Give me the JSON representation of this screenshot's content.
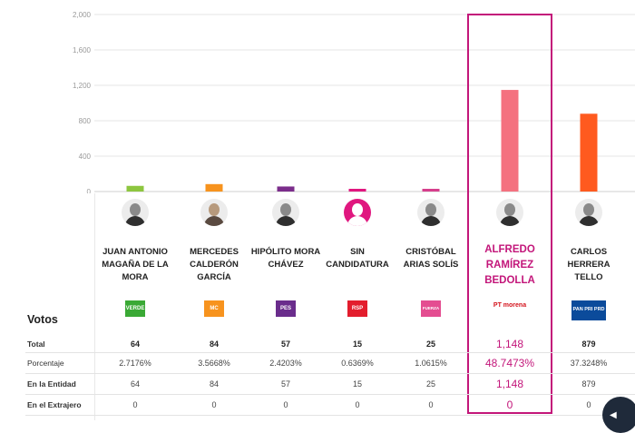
{
  "chart_data": {
    "type": "bar",
    "ylim": [
      0,
      2000
    ],
    "yticks": [
      "2,000",
      "1,600",
      "1,200",
      "800",
      "400",
      "0"
    ],
    "ytick_values": [
      2000,
      1600,
      1200,
      800,
      400,
      0
    ],
    "categories": [
      "JUAN ANTONIO MAGAÑA DE LA MORA",
      "MERCEDES CALDERÓN GARCÍA",
      "HIPÓLITO MORA CHÁVEZ",
      "SIN CANDIDATURA",
      "CRISTÓBAL ARIAS SOLÍS",
      "ALFREDO RAMÍREZ BEDOLLA",
      "CARLOS HERRERA TELLO"
    ],
    "values": [
      64,
      84,
      57,
      15,
      25,
      1148,
      879
    ],
    "colors": [
      "#8dc63f",
      "#f7931e",
      "#7b2d8b",
      "#e0177f",
      "#d63f8c",
      "#f4717f",
      "#ff5a1f"
    ]
  },
  "table": {
    "title": "Votos",
    "row_labels": [
      "Total",
      "Porcentaje",
      "En la Entidad",
      "En el Extrajero"
    ],
    "candidates": [
      {
        "name": "JUAN ANTONIO MAGAÑA DE LA MORA",
        "logo": "VERDE",
        "logo_color": "#3aa935",
        "total": "64",
        "pct": "2.7176%",
        "entidad": "64",
        "extranjero": "0"
      },
      {
        "name": "MERCEDES CALDERÓN GARCÍA",
        "logo": "MC",
        "logo_color": "#f7931e",
        "total": "84",
        "pct": "3.5668%",
        "entidad": "84",
        "extranjero": "0"
      },
      {
        "name": "HIPÓLITO MORA CHÁVEZ",
        "logo": "PES",
        "logo_color": "#6a2d8c",
        "total": "57",
        "pct": "2.4203%",
        "entidad": "57",
        "extranjero": "0"
      },
      {
        "name": "SIN CANDIDATURA",
        "logo": "RSP",
        "logo_color": "#e31d2d",
        "total": "15",
        "pct": "0.6369%",
        "entidad": "15",
        "extranjero": "0"
      },
      {
        "name": "CRISTÓBAL ARIAS SOLÍS",
        "logo": "FUERZA",
        "logo_color": "#e44d91",
        "total": "25",
        "pct": "1.0615%",
        "entidad": "25",
        "extranjero": "0"
      },
      {
        "name": "ALFREDO RAMÍREZ BEDOLLA",
        "logo": "PT morena",
        "logo_color": "#d4121b",
        "total": "1,148",
        "pct": "48.7473%",
        "entidad": "1,148",
        "extranjero": "0"
      },
      {
        "name": "CARLOS HERRERA TELLO",
        "logo": "PAN PRI PRD",
        "logo_color": "#0b4b9b",
        "total": "879",
        "pct": "37.3248%",
        "entidad": "879",
        "extranjero": "0"
      }
    ]
  }
}
